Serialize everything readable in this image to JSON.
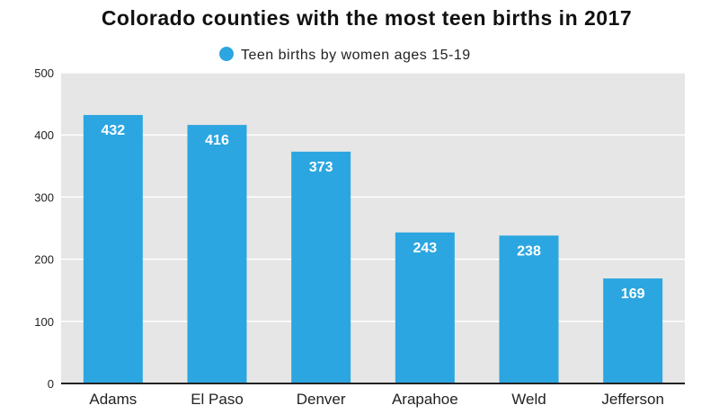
{
  "chart_data": {
    "type": "bar",
    "title": "Colorado counties with the most teen births in 2017",
    "legend": [
      {
        "name": "Teen births by women ages 15-19",
        "color": "#2ca6e0"
      }
    ],
    "legend_placement": "top-center",
    "categories": [
      "Adams",
      "El Paso",
      "Denver",
      "Arapahoe",
      "Weld",
      "Jefferson"
    ],
    "values": [
      432,
      416,
      373,
      243,
      238,
      169
    ],
    "data_labels": [
      "432",
      "416",
      "373",
      "243",
      "238",
      "169"
    ],
    "yticks": [
      0,
      100,
      200,
      300,
      400,
      500
    ],
    "ylim": [
      0,
      500
    ],
    "xlabel": "",
    "ylabel": "",
    "grid": true,
    "colors": {
      "bar": "#2ca6e0",
      "plot_bg": "#e6e6e6",
      "grid": "#ffffff",
      "axis": "#222222"
    }
  }
}
